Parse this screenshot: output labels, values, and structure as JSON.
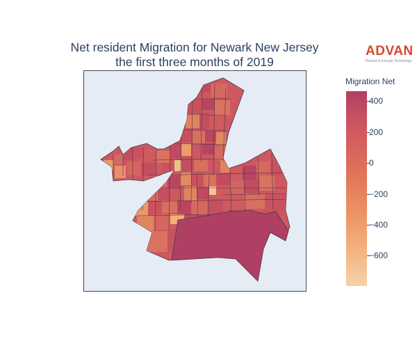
{
  "title": {
    "line1": "Net resident Migration for Newark New Jersey",
    "line2": "the first three months of 2019"
  },
  "logo": {
    "word": "ADVAN",
    "tagline": "Research through Technology"
  },
  "colorbar": {
    "title": "Migration Net",
    "range": [
      -790,
      480
    ],
    "ticks": [
      400,
      200,
      0,
      -200,
      -400,
      -600
    ],
    "tick_labels": [
      "400",
      "200",
      "0",
      "−200",
      "−400",
      "−600"
    ],
    "colors_top_to_bottom": [
      "#b13f64",
      "#c8505f",
      "#d7615c",
      "#e27659",
      "#ec9263",
      "#f4b07c",
      "#f6d2a9"
    ]
  },
  "map": {
    "background": "#e5ecf6",
    "border_color": "#555555",
    "default_region_color": "#cc5862"
  }
}
